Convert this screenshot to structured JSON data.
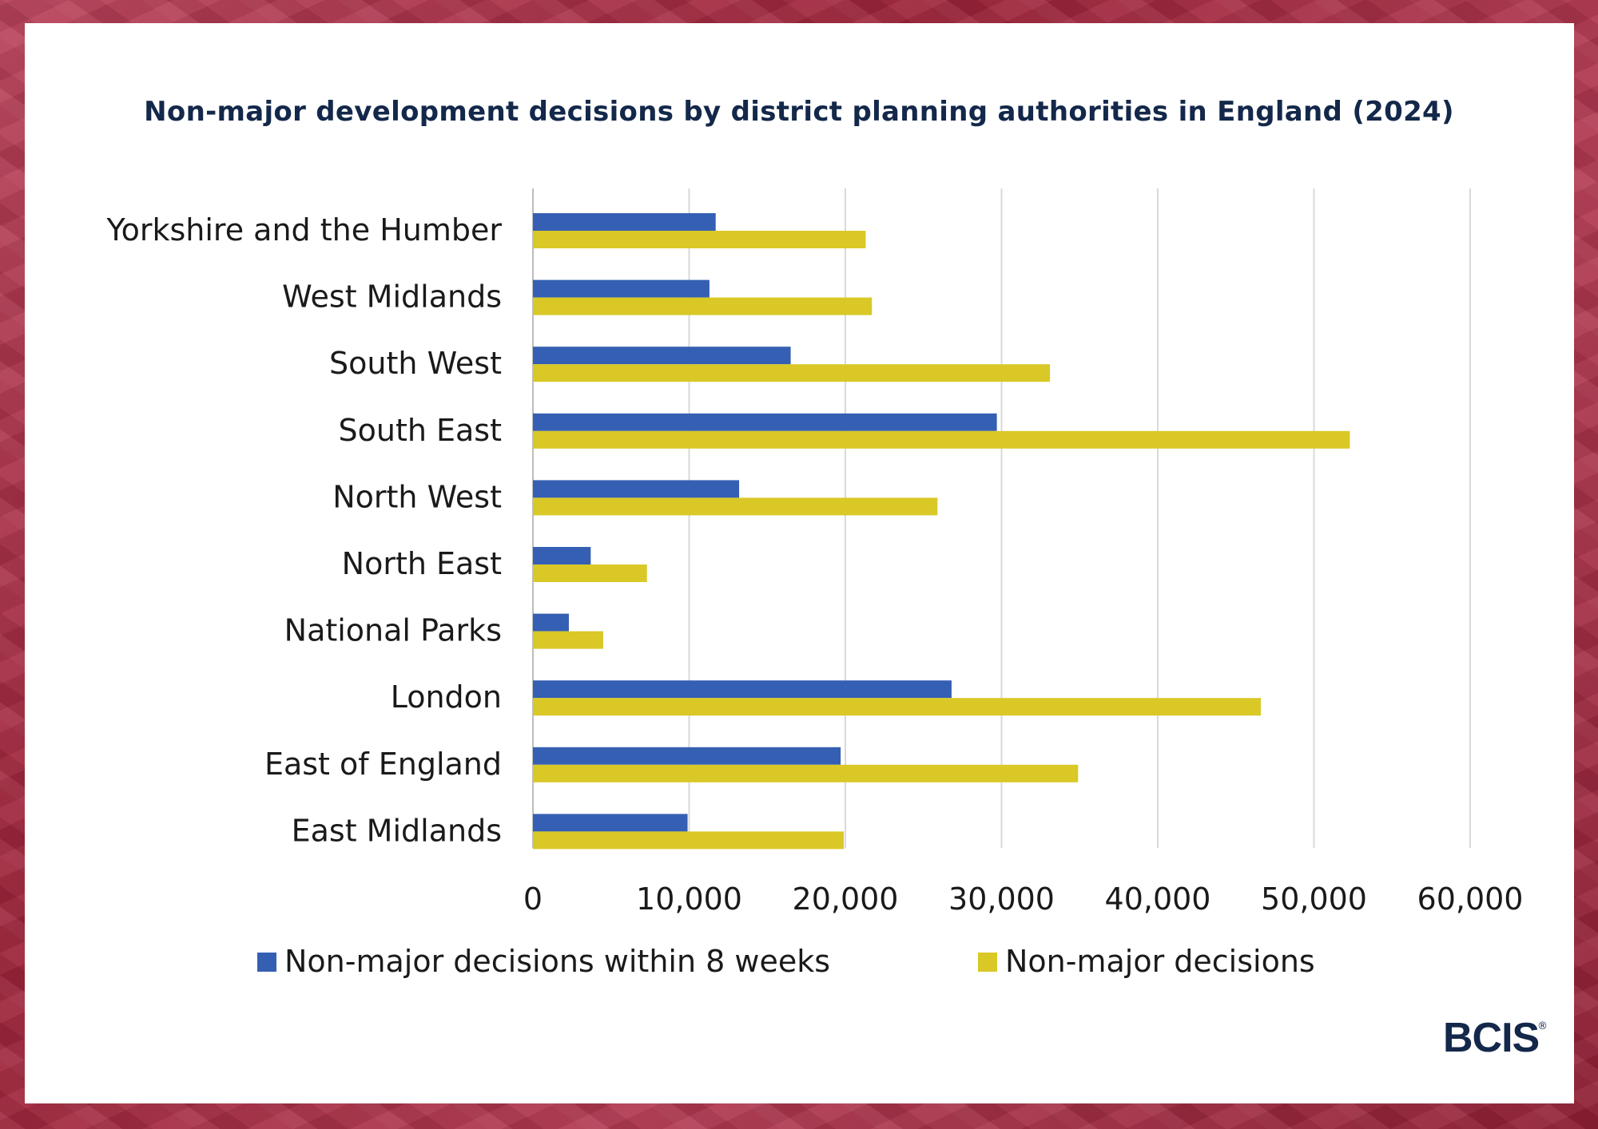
{
  "chart_data": {
    "type": "bar",
    "orientation": "horizontal",
    "title": "Non-major development decisions by district planning authorities in England (2024)",
    "categories": [
      "Yorkshire and the Humber",
      "West Midlands",
      "South West",
      "South East",
      "North West",
      "North East",
      "National Parks",
      "London",
      "East of England",
      "East Midlands"
    ],
    "series": [
      {
        "name": "Non-major decisions within 8 weeks",
        "color": "#355fb3",
        "values": [
          11700,
          11300,
          16500,
          29700,
          13200,
          3700,
          2300,
          26800,
          19700,
          9900
        ]
      },
      {
        "name": "Non-major decisions",
        "color": "#d9c826",
        "values": [
          21300,
          21700,
          33100,
          52300,
          25900,
          7300,
          4500,
          46600,
          34900,
          19900
        ]
      }
    ],
    "xlim": [
      0,
      60000
    ],
    "x_ticks": [
      0,
      10000,
      20000,
      30000,
      40000,
      50000,
      60000
    ],
    "x_tick_labels": [
      "0",
      "10,000",
      "20,000",
      "30,000",
      "40,000",
      "50,000",
      "60,000"
    ],
    "grid": true,
    "legend_position": "bottom"
  },
  "brand": {
    "logo_text": "BCIS",
    "logo_mark": "®"
  }
}
